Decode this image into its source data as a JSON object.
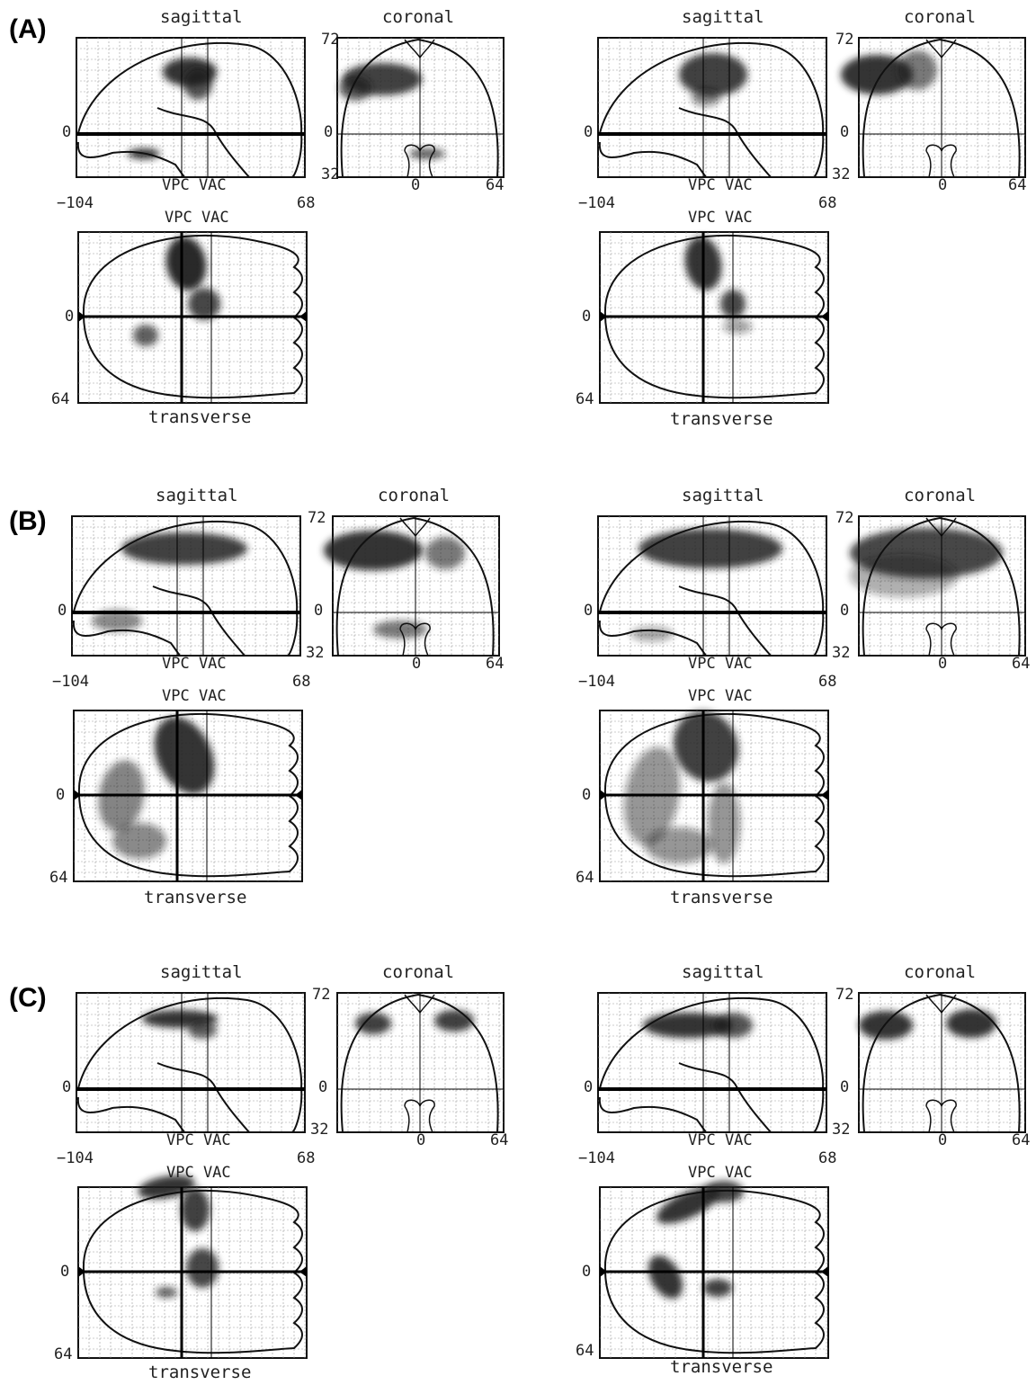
{
  "panels": [
    {
      "letter": "(A)",
      "pairs": [
        {
          "sagittal_title": "sagittal",
          "coronal_title": "coronal",
          "transverse_title": "transverse",
          "ref_label": "VPC VAC",
          "x_min": "−104",
          "x_max": "68",
          "z_top": "72",
          "z_zero": "0",
          "z_bottom": "32",
          "cor_zero": "0",
          "cor_right": "64",
          "right_marker": "R",
          "tr_zero": "0",
          "tr_bottom": "64"
        },
        {
          "sagittal_title": "sagittal",
          "coronal_title": "coronal",
          "transverse_title": "transverse",
          "ref_label": "VPC VAC",
          "x_min": "−104",
          "x_max": "68",
          "z_top": "72",
          "z_zero": "0",
          "z_bottom": "32",
          "cor_zero": "0",
          "cor_right": "64",
          "right_marker": "R",
          "tr_zero": "0",
          "tr_bottom": "64"
        }
      ]
    },
    {
      "letter": "(B)",
      "pairs": [
        {
          "sagittal_title": "sagittal",
          "coronal_title": "coronal",
          "transverse_title": "transverse",
          "ref_label": "VPC VAC",
          "x_min": "−104",
          "x_max": "68",
          "z_top": "72",
          "z_zero": "0",
          "z_bottom": "32",
          "cor_zero": "0",
          "cor_right": "64",
          "right_marker": "R",
          "tr_zero": "0",
          "tr_bottom": "64"
        },
        {
          "sagittal_title": "sagittal",
          "coronal_title": "coronal",
          "transverse_title": "transverse",
          "ref_label": "VPC VAC",
          "x_min": "−104",
          "x_max": "68",
          "z_top": "72",
          "z_zero": "0",
          "z_bottom": "32",
          "cor_zero": "0",
          "cor_right": "64",
          "right_marker": "R",
          "tr_zero": "0",
          "tr_bottom": "64"
        }
      ]
    },
    {
      "letter": "(C)",
      "pairs": [
        {
          "sagittal_title": "sagittal",
          "coronal_title": "coronal",
          "transverse_title": "transverse",
          "ref_label": "VPC VAC",
          "x_min": "−104",
          "x_max": "68",
          "z_top": "72",
          "z_zero": "0",
          "z_bottom": "32",
          "cor_zero": "0",
          "cor_right": "64",
          "right_marker": "R",
          "tr_zero": "0",
          "tr_bottom": "64"
        },
        {
          "sagittal_title": "sagittal",
          "coronal_title": "coronal",
          "transverse_title": "transverse",
          "ref_label": "VPC VAC",
          "x_min": "−104",
          "x_max": "68",
          "z_top": "72",
          "z_zero": "0",
          "z_bottom": "32",
          "cor_zero": "0",
          "cor_right": "64",
          "right_marker": "R",
          "tr_zero": "0",
          "tr_bottom": "64"
        }
      ]
    }
  ],
  "colors": {
    "outline": "#111111",
    "grid": "#9a9a9a",
    "blob": "#1c1c1c"
  }
}
